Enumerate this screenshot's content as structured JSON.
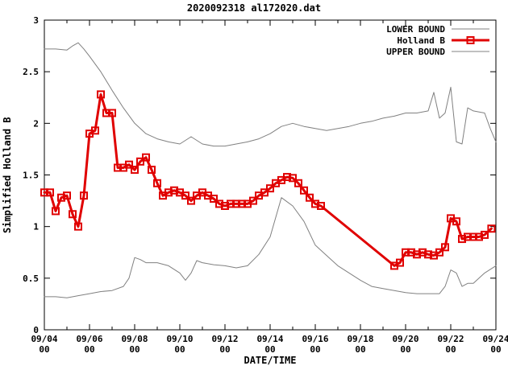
{
  "chart_data": {
    "type": "line",
    "title": "2020092318 al172020.dat",
    "xlabel": "DATE/TIME",
    "ylabel": "Simplified Holland B",
    "x_range": [
      0,
      20
    ],
    "y_range": [
      0,
      3
    ],
    "grid": false,
    "legend_position": "top-right-inside",
    "x_ticks": [
      {
        "t": 0,
        "label": "09/04",
        "sub": "00"
      },
      {
        "t": 2,
        "label": "09/06",
        "sub": "00"
      },
      {
        "t": 4,
        "label": "09/08",
        "sub": "00"
      },
      {
        "t": 6,
        "label": "09/10",
        "sub": "00"
      },
      {
        "t": 8,
        "label": "09/12",
        "sub": "00"
      },
      {
        "t": 10,
        "label": "09/14",
        "sub": "00"
      },
      {
        "t": 12,
        "label": "09/16",
        "sub": "00"
      },
      {
        "t": 14,
        "label": "09/18",
        "sub": "00"
      },
      {
        "t": 16,
        "label": "09/20",
        "sub": "00"
      },
      {
        "t": 18,
        "label": "09/22",
        "sub": "00"
      },
      {
        "t": 20,
        "label": "09/24",
        "sub": "00"
      }
    ],
    "y_ticks": [
      {
        "v": 0,
        "label": "0"
      },
      {
        "v": 0.5,
        "label": "0.5"
      },
      {
        "v": 1,
        "label": "1"
      },
      {
        "v": 1.5,
        "label": "1.5"
      },
      {
        "v": 2,
        "label": "2"
      },
      {
        "v": 2.5,
        "label": "2.5"
      },
      {
        "v": 3,
        "label": "3"
      }
    ],
    "legend": [
      {
        "label": "LOWER BOUND",
        "color": "#808080",
        "width": 1,
        "marker": null
      },
      {
        "label": "Holland B",
        "color": "#e00000",
        "width": 3,
        "marker": "open-square"
      },
      {
        "label": "UPPER BOUND",
        "color": "#808080",
        "width": 1,
        "marker": null
      }
    ],
    "series": [
      {
        "name": "LOWER BOUND",
        "color": "#808080",
        "width": 1,
        "marker": null,
        "points": [
          [
            0,
            0.32
          ],
          [
            0.5,
            0.32
          ],
          [
            1,
            0.31
          ],
          [
            1.5,
            0.33
          ],
          [
            2,
            0.35
          ],
          [
            2.5,
            0.37
          ],
          [
            3,
            0.38
          ],
          [
            3.5,
            0.42
          ],
          [
            3.75,
            0.5
          ],
          [
            4,
            0.7
          ],
          [
            4.25,
            0.68
          ],
          [
            4.5,
            0.65
          ],
          [
            5,
            0.65
          ],
          [
            5.5,
            0.62
          ],
          [
            6,
            0.55
          ],
          [
            6.25,
            0.48
          ],
          [
            6.5,
            0.55
          ],
          [
            6.75,
            0.67
          ],
          [
            7,
            0.65
          ],
          [
            7.5,
            0.63
          ],
          [
            8,
            0.62
          ],
          [
            8.5,
            0.6
          ],
          [
            9,
            0.62
          ],
          [
            9.5,
            0.73
          ],
          [
            10,
            0.9
          ],
          [
            10.5,
            1.28
          ],
          [
            11,
            1.2
          ],
          [
            11.5,
            1.05
          ],
          [
            12,
            0.82
          ],
          [
            12.5,
            0.72
          ],
          [
            13,
            0.62
          ],
          [
            13.5,
            0.55
          ],
          [
            14,
            0.48
          ],
          [
            14.5,
            0.42
          ],
          [
            15,
            0.4
          ],
          [
            15.5,
            0.38
          ],
          [
            16,
            0.36
          ],
          [
            16.5,
            0.35
          ],
          [
            17,
            0.35
          ],
          [
            17.5,
            0.35
          ],
          [
            17.75,
            0.42
          ],
          [
            18,
            0.58
          ],
          [
            18.25,
            0.55
          ],
          [
            18.5,
            0.42
          ],
          [
            18.75,
            0.45
          ],
          [
            19,
            0.45
          ],
          [
            19.5,
            0.55
          ],
          [
            20,
            0.62
          ]
        ]
      },
      {
        "name": "Holland B",
        "color": "#e00000",
        "width": 3,
        "marker": "open-square",
        "points": [
          [
            0,
            1.33,
            1
          ],
          [
            0.25,
            1.33,
            1
          ],
          [
            0.5,
            1.15,
            1
          ],
          [
            0.75,
            1.28,
            1
          ],
          [
            1,
            1.3,
            1
          ],
          [
            1.25,
            1.12,
            1
          ],
          [
            1.5,
            1.0,
            1
          ],
          [
            1.75,
            1.3,
            1
          ],
          [
            2,
            1.9,
            1
          ],
          [
            2.25,
            1.93,
            1
          ],
          [
            2.5,
            2.28,
            1
          ],
          [
            2.75,
            2.1,
            1
          ],
          [
            3,
            2.1,
            1
          ],
          [
            3.25,
            1.57,
            1
          ],
          [
            3.5,
            1.57,
            1
          ],
          [
            3.75,
            1.6,
            1
          ],
          [
            4,
            1.55,
            1
          ],
          [
            4.25,
            1.63,
            1
          ],
          [
            4.5,
            1.67,
            1
          ],
          [
            4.75,
            1.55,
            1
          ],
          [
            5,
            1.42,
            1
          ],
          [
            5.25,
            1.3,
            1
          ],
          [
            5.5,
            1.33,
            1
          ],
          [
            5.75,
            1.35,
            1
          ],
          [
            6,
            1.33,
            1
          ],
          [
            6.25,
            1.3,
            1
          ],
          [
            6.5,
            1.25,
            1
          ],
          [
            6.75,
            1.3,
            1
          ],
          [
            7,
            1.33,
            1
          ],
          [
            7.25,
            1.3,
            1
          ],
          [
            7.5,
            1.27,
            1
          ],
          [
            7.75,
            1.22,
            1
          ],
          [
            8,
            1.2,
            1
          ],
          [
            8.25,
            1.22,
            1
          ],
          [
            8.5,
            1.22,
            1
          ],
          [
            8.75,
            1.22,
            1
          ],
          [
            9,
            1.22,
            1
          ],
          [
            9.25,
            1.25,
            1
          ],
          [
            9.5,
            1.3,
            1
          ],
          [
            9.75,
            1.33,
            1
          ],
          [
            10,
            1.37,
            1
          ],
          [
            10.25,
            1.42,
            1
          ],
          [
            10.5,
            1.45,
            1
          ],
          [
            10.75,
            1.48,
            1
          ],
          [
            11,
            1.47,
            1
          ],
          [
            11.25,
            1.42,
            1
          ],
          [
            11.5,
            1.35,
            1
          ],
          [
            11.75,
            1.28,
            1
          ],
          [
            12,
            1.22,
            1
          ],
          [
            12.25,
            1.2,
            1
          ],
          [
            15.5,
            0.62,
            1
          ],
          [
            15.75,
            0.65,
            1
          ],
          [
            16,
            0.75,
            1
          ],
          [
            16.25,
            0.75,
            1
          ],
          [
            16.5,
            0.73,
            1
          ],
          [
            16.75,
            0.75,
            1
          ],
          [
            17,
            0.73,
            1
          ],
          [
            17.25,
            0.72,
            1
          ],
          [
            17.5,
            0.75,
            1
          ],
          [
            17.75,
            0.8,
            1
          ],
          [
            18,
            1.08,
            1
          ],
          [
            18.25,
            1.05,
            1
          ],
          [
            18.5,
            0.88,
            1
          ],
          [
            18.75,
            0.9,
            1
          ],
          [
            19,
            0.9,
            1
          ],
          [
            19.25,
            0.9,
            1
          ],
          [
            19.5,
            0.92,
            1
          ],
          [
            19.8,
            0.98,
            1
          ]
        ]
      },
      {
        "name": "UPPER BOUND",
        "color": "#808080",
        "width": 1,
        "marker": null,
        "points": [
          [
            0,
            2.72
          ],
          [
            0.5,
            2.72
          ],
          [
            1,
            2.71
          ],
          [
            1.25,
            2.75
          ],
          [
            1.5,
            2.78
          ],
          [
            1.75,
            2.72
          ],
          [
            2,
            2.65
          ],
          [
            2.5,
            2.5
          ],
          [
            3,
            2.32
          ],
          [
            3.5,
            2.15
          ],
          [
            4,
            2.0
          ],
          [
            4.5,
            1.9
          ],
          [
            5,
            1.85
          ],
          [
            5.5,
            1.82
          ],
          [
            6,
            1.8
          ],
          [
            6.5,
            1.87
          ],
          [
            7,
            1.8
          ],
          [
            7.5,
            1.78
          ],
          [
            8,
            1.78
          ],
          [
            8.5,
            1.8
          ],
          [
            9,
            1.82
          ],
          [
            9.5,
            1.85
          ],
          [
            10,
            1.9
          ],
          [
            10.5,
            1.97
          ],
          [
            11,
            2.0
          ],
          [
            11.5,
            1.97
          ],
          [
            12,
            1.95
          ],
          [
            12.5,
            1.93
          ],
          [
            13,
            1.95
          ],
          [
            13.5,
            1.97
          ],
          [
            14,
            2.0
          ],
          [
            14.5,
            2.02
          ],
          [
            15,
            2.05
          ],
          [
            15.5,
            2.07
          ],
          [
            16,
            2.1
          ],
          [
            16.5,
            2.1
          ],
          [
            17,
            2.12
          ],
          [
            17.25,
            2.3
          ],
          [
            17.5,
            2.05
          ],
          [
            17.75,
            2.1
          ],
          [
            18,
            2.35
          ],
          [
            18.25,
            1.82
          ],
          [
            18.5,
            1.8
          ],
          [
            18.75,
            2.15
          ],
          [
            19,
            2.12
          ],
          [
            19.5,
            2.1
          ],
          [
            19.75,
            1.95
          ],
          [
            20,
            1.82
          ]
        ]
      }
    ]
  }
}
